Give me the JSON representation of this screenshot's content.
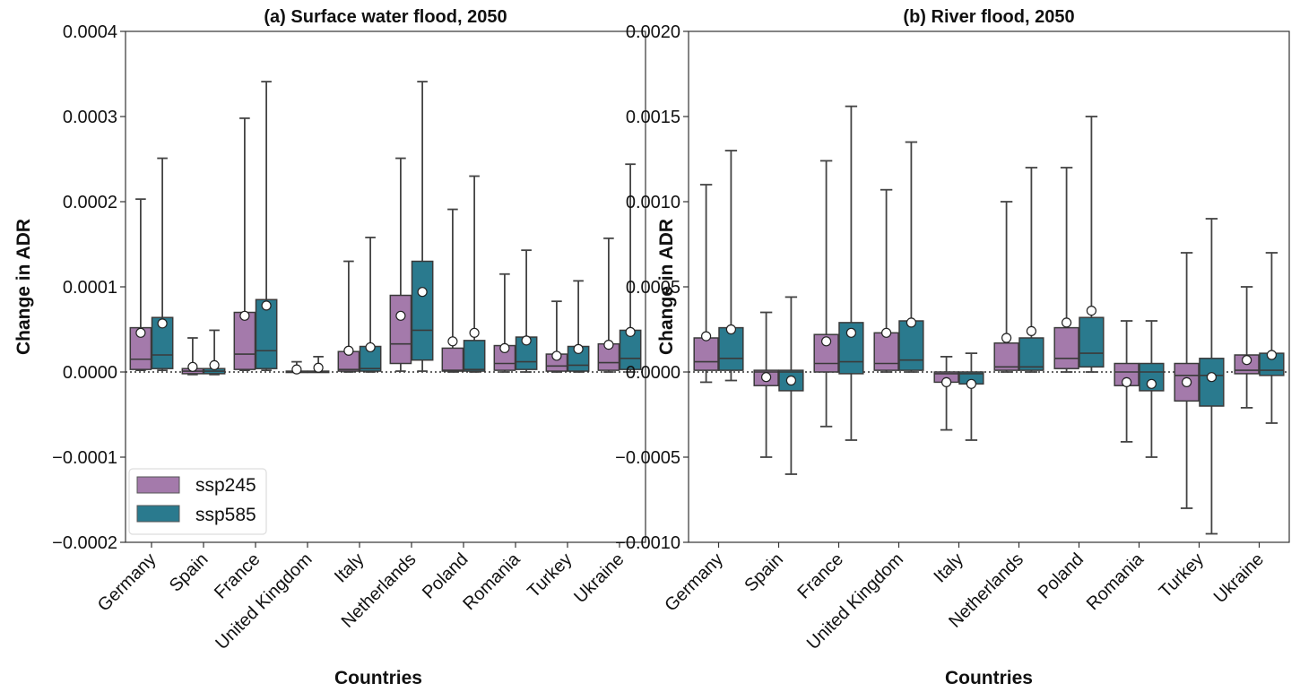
{
  "chart_data": [
    {
      "type": "box",
      "title": "(a) Surface water flood, 2050",
      "xlabel": "Countries",
      "ylabel": "Change in ADR",
      "ylim": [
        -0.0002,
        0.0004
      ],
      "yticks": [
        -0.0002,
        -0.0001,
        0.0,
        0.0001,
        0.0002,
        0.0003,
        0.0004
      ],
      "ytick_labels": [
        "−0.0002",
        "−0.0001",
        "0.0000",
        "0.0001",
        "0.0002",
        "0.0003",
        "0.0004"
      ],
      "zero_line": "dotted",
      "grid": false,
      "legend": {
        "placement": "lower-left",
        "entries": [
          "ssp245",
          "ssp585"
        ]
      },
      "categories": [
        "Germany",
        "Spain",
        "France",
        "United Kingdom",
        "Italy",
        "Netherlands",
        "Poland",
        "Romania",
        "Turkey",
        "Ukraine"
      ],
      "series": [
        {
          "name": "ssp245",
          "color": "#a47aab",
          "boxes": [
            {
              "whislo": 2e-06,
              "q1": 3e-06,
              "med": 1.5e-05,
              "q3": 5.2e-05,
              "whishi": 0.000203,
              "mean": 4.6e-05
            },
            {
              "whislo": -3e-06,
              "q1": -2e-06,
              "med": 1e-06,
              "q3": 4e-06,
              "whishi": 4e-05,
              "mean": 6e-06
            },
            {
              "whislo": 2e-06,
              "q1": 3e-06,
              "med": 2.1e-05,
              "q3": 7e-05,
              "whishi": 0.000298,
              "mean": 6.6e-05
            },
            {
              "whislo": 0.0,
              "q1": 0.0,
              "med": 0.0,
              "q3": 1e-06,
              "whishi": 1.2e-05,
              "mean": 3e-06
            },
            {
              "whislo": 0.0,
              "q1": 1e-06,
              "med": 3e-06,
              "q3": 2.4e-05,
              "whishi": 0.00013,
              "mean": 2.5e-05
            },
            {
              "whislo": 1e-06,
              "q1": 1e-05,
              "med": 3.3e-05,
              "q3": 9e-05,
              "whishi": 0.000251,
              "mean": 6.6e-05
            },
            {
              "whislo": 0.0,
              "q1": 1e-06,
              "med": 2e-06,
              "q3": 2.8e-05,
              "whishi": 0.000191,
              "mean": 3.6e-05
            },
            {
              "whislo": 0.0,
              "q1": 2e-06,
              "med": 1e-05,
              "q3": 3.1e-05,
              "whishi": 0.000115,
              "mean": 2.8e-05
            },
            {
              "whislo": 0.0,
              "q1": 1e-06,
              "med": 7e-06,
              "q3": 2.1e-05,
              "whishi": 8.3e-05,
              "mean": 1.9e-05
            },
            {
              "whislo": 0.0,
              "q1": 2e-06,
              "med": 1.1e-05,
              "q3": 3.3e-05,
              "whishi": 0.000157,
              "mean": 3.2e-05
            }
          ]
        },
        {
          "name": "ssp585",
          "color": "#2a7a8e",
          "boxes": [
            {
              "whislo": 2e-06,
              "q1": 4e-06,
              "med": 2e-05,
              "q3": 6.4e-05,
              "whishi": 0.000251,
              "mean": 5.7e-05
            },
            {
              "whislo": -3e-06,
              "q1": -2e-06,
              "med": 1e-06,
              "q3": 4e-06,
              "whishi": 4.9e-05,
              "mean": 8e-06
            },
            {
              "whislo": 2e-06,
              "q1": 4e-06,
              "med": 2.5e-05,
              "q3": 8.5e-05,
              "whishi": 0.000341,
              "mean": 7.8e-05
            },
            {
              "whislo": 0.0,
              "q1": 0.0,
              "med": 0.0,
              "q3": 1e-06,
              "whishi": 1.8e-05,
              "mean": 5e-06
            },
            {
              "whislo": 0.0,
              "q1": 1e-06,
              "med": 4e-06,
              "q3": 3e-05,
              "whishi": 0.000158,
              "mean": 2.9e-05
            },
            {
              "whislo": 1e-06,
              "q1": 1.4e-05,
              "med": 4.9e-05,
              "q3": 0.00013,
              "whishi": 0.000341,
              "mean": 9.4e-05
            },
            {
              "whislo": 0.0,
              "q1": 1e-06,
              "med": 3e-06,
              "q3": 3.7e-05,
              "whishi": 0.00023,
              "mean": 4.6e-05
            },
            {
              "whislo": 0.0,
              "q1": 3e-06,
              "med": 1.2e-05,
              "q3": 4.1e-05,
              "whishi": 0.000143,
              "mean": 3.7e-05
            },
            {
              "whislo": 0.0,
              "q1": 1e-06,
              "med": 8e-06,
              "q3": 3e-05,
              "whishi": 0.000107,
              "mean": 2.7e-05
            },
            {
              "whislo": 0.0,
              "q1": 3e-06,
              "med": 1.6e-05,
              "q3": 4.9e-05,
              "whishi": 0.000244,
              "mean": 4.7e-05
            }
          ]
        }
      ]
    },
    {
      "type": "box",
      "title": "(b) River flood, 2050",
      "xlabel": "Countries",
      "ylabel": "Change in ADR",
      "ylim": [
        -0.001,
        0.002
      ],
      "yticks": [
        -0.001,
        -0.0005,
        0.0,
        0.0005,
        0.001,
        0.0015,
        0.002
      ],
      "ytick_labels": [
        "−0.0010",
        "−0.0005",
        "0.0000",
        "0.0005",
        "0.0010",
        "0.0015",
        "0.0020"
      ],
      "zero_line": "dotted",
      "grid": false,
      "categories": [
        "Germany",
        "Spain",
        "France",
        "United Kingdom",
        "Italy",
        "Netherlands",
        "Poland",
        "Romania",
        "Turkey",
        "Ukraine"
      ],
      "series": [
        {
          "name": "ssp245",
          "color": "#a47aab",
          "boxes": [
            {
              "whislo": -6e-05,
              "q1": 1e-05,
              "med": 6e-05,
              "q3": 0.0002,
              "whishi": 0.0011,
              "mean": 0.00021
            },
            {
              "whislo": -0.0005,
              "q1": -8e-05,
              "med": 0.0,
              "q3": 1e-05,
              "whishi": 0.00035,
              "mean": -3e-05
            },
            {
              "whislo": -0.00032,
              "q1": 0.0,
              "med": 5e-05,
              "q3": 0.00022,
              "whishi": 0.00124,
              "mean": 0.00018
            },
            {
              "whislo": 0.0,
              "q1": 1e-05,
              "med": 5e-05,
              "q3": 0.00023,
              "whishi": 0.00107,
              "mean": 0.00023
            },
            {
              "whislo": -0.00034,
              "q1": -6e-05,
              "med": -1e-05,
              "q3": 0.0,
              "whishi": 9e-05,
              "mean": -6e-05
            },
            {
              "whislo": 0.0,
              "q1": 1e-05,
              "med": 3e-05,
              "q3": 0.00017,
              "whishi": 0.001,
              "mean": 0.0002
            },
            {
              "whislo": 0.0,
              "q1": 2e-05,
              "med": 8e-05,
              "q3": 0.00026,
              "whishi": 0.0012,
              "mean": 0.00029
            },
            {
              "whislo": -0.00041,
              "q1": -8e-05,
              "med": 0.0,
              "q3": 5e-05,
              "whishi": 0.0003,
              "mean": -6e-05
            },
            {
              "whislo": -0.0008,
              "q1": -0.00017,
              "med": -2e-05,
              "q3": 5e-05,
              "whishi": 0.0007,
              "mean": -6e-05
            },
            {
              "whislo": -0.00021,
              "q1": -1e-05,
              "med": 1e-05,
              "q3": 0.0001,
              "whishi": 0.0005,
              "mean": 7e-05
            }
          ]
        },
        {
          "name": "ssp585",
          "color": "#2a7a8e",
          "boxes": [
            {
              "whislo": -5e-05,
              "q1": 1e-05,
              "med": 8e-05,
              "q3": 0.00026,
              "whishi": 0.0013,
              "mean": 0.00025
            },
            {
              "whislo": -0.0006,
              "q1": -0.00011,
              "med": 0.0,
              "q3": 1e-05,
              "whishi": 0.00044,
              "mean": -5e-05
            },
            {
              "whislo": -0.0004,
              "q1": -1e-05,
              "med": 6e-05,
              "q3": 0.00029,
              "whishi": 0.00156,
              "mean": 0.00023
            },
            {
              "whislo": 0.0,
              "q1": 1e-05,
              "med": 7e-05,
              "q3": 0.0003,
              "whishi": 0.00135,
              "mean": 0.00029
            },
            {
              "whislo": -0.0004,
              "q1": -7e-05,
              "med": -1e-05,
              "q3": 0.0,
              "whishi": 0.00011,
              "mean": -7e-05
            },
            {
              "whislo": 0.0,
              "q1": 1e-05,
              "med": 3e-05,
              "q3": 0.0002,
              "whishi": 0.0012,
              "mean": 0.00024
            },
            {
              "whislo": 0.0,
              "q1": 3e-05,
              "med": 0.00011,
              "q3": 0.00032,
              "whishi": 0.0015,
              "mean": 0.00036
            },
            {
              "whislo": -0.0005,
              "q1": -0.00011,
              "med": 0.0,
              "q3": 5e-05,
              "whishi": 0.0003,
              "mean": -7e-05
            },
            {
              "whislo": -0.00095,
              "q1": -0.0002,
              "med": -2e-05,
              "q3": 8e-05,
              "whishi": 0.0009,
              "mean": -3e-05
            },
            {
              "whislo": -0.0003,
              "q1": -2e-05,
              "med": 1e-05,
              "q3": 0.00011,
              "whishi": 0.0007,
              "mean": 0.0001
            }
          ]
        }
      ]
    }
  ]
}
